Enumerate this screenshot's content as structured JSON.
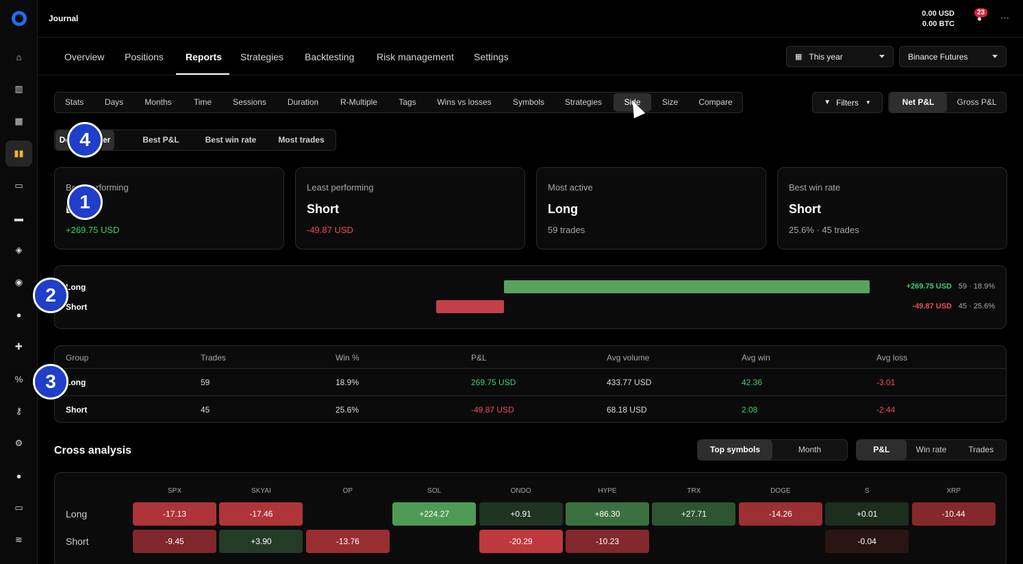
{
  "topbar": {
    "title": "Journal",
    "balance_usd": "0.00 USD",
    "balance_btc": "0.00 BTC",
    "notification_count": "23",
    "more_label": "···"
  },
  "rail": [
    {
      "icon": "home-icon",
      "glyph": "⌂"
    },
    {
      "icon": "chart-icon",
      "glyph": "▥"
    },
    {
      "icon": "grid-icon",
      "glyph": "▦"
    },
    {
      "icon": "book-icon",
      "glyph": "▮▮",
      "active": true
    },
    {
      "icon": "monitor-icon",
      "glyph": "▭"
    },
    {
      "icon": "wallet-icon",
      "glyph": "▬"
    },
    {
      "icon": "tag-icon",
      "glyph": "◈"
    },
    {
      "icon": "compass-icon",
      "glyph": "◉"
    },
    {
      "icon": "chat-icon",
      "glyph": "●",
      "dot": true
    },
    {
      "icon": "puzzle-icon",
      "glyph": "✚"
    },
    {
      "icon": "percent-icon",
      "glyph": "%"
    },
    {
      "icon": "key-icon",
      "glyph": "⚷"
    },
    {
      "icon": "gear-icon",
      "glyph": "⚙"
    },
    {
      "icon": "support-icon",
      "glyph": "●"
    },
    {
      "icon": "desktop-icon",
      "glyph": "▭"
    },
    {
      "icon": "wifi-icon",
      "glyph": "≋"
    }
  ],
  "nav": {
    "tabs": [
      "Overview",
      "Positions",
      "Reports",
      "Strategies",
      "Backtesting",
      "Risk management",
      "Settings"
    ],
    "active": "Reports",
    "period": "This year",
    "exchange": "Binance Futures"
  },
  "subtabs": [
    "Stats",
    "Days",
    "Months",
    "Time",
    "Sessions",
    "Duration",
    "R-Multiple",
    "Tags",
    "Wins vs losses",
    "Symbols",
    "Strategies",
    "Side",
    "Size",
    "Compare"
  ],
  "subtab_active": "Side",
  "filters": {
    "filters_label": "Filters",
    "net_label": "Net P&L",
    "gross_label": "Gross P&L"
  },
  "sort": [
    "Default order",
    "Best P&L",
    "Best win rate",
    "Most trades"
  ],
  "cards": [
    {
      "label": "Best performing",
      "value": "Long",
      "sub": "+269.75 USD",
      "tone": "pos"
    },
    {
      "label": "Least performing",
      "value": "Short",
      "sub": "-49.87 USD",
      "tone": "neg"
    },
    {
      "label": "Most active",
      "value": "Long",
      "sub": "59 trades",
      "tone": ""
    },
    {
      "label": "Best win rate",
      "value": "Short",
      "sub": "25.6% · 45 trades",
      "tone": ""
    }
  ],
  "bars": [
    {
      "label": "Long",
      "pnl": 269.75,
      "pnl_text": "+269.75 USD",
      "meta": "59 · 18.9%"
    },
    {
      "label": "Short",
      "pnl": -49.87,
      "pnl_text": "-49.87 USD",
      "meta": "45 · 25.6%"
    }
  ],
  "table": {
    "headers": [
      "Group",
      "Trades",
      "Win %",
      "P&L",
      "Avg volume",
      "Avg win",
      "Avg loss"
    ],
    "rows": [
      [
        "Long",
        "59",
        "18.9%",
        "269.75 USD",
        "433.77 USD",
        "42.36",
        "-3.01"
      ],
      [
        "Short",
        "45",
        "25.6%",
        "-49.87 USD",
        "68.18 USD",
        "2.08",
        "-2.44"
      ]
    ]
  },
  "cross": {
    "title": "Cross analysis",
    "mode_tabs": [
      "Top symbols",
      "Month"
    ],
    "mode_active": "Top symbols",
    "metric_tabs": [
      "P&L",
      "Win rate",
      "Trades"
    ],
    "metric_active": "P&L",
    "columns": [
      "SPX",
      "SKYAI",
      "OP",
      "SOL",
      "ONDO",
      "HYPE",
      "TRX",
      "DOGE",
      "S",
      "XRP"
    ],
    "rows": [
      {
        "label": "Long",
        "values": [
          -17.13,
          -17.46,
          null,
          224.27,
          0.91,
          86.3,
          27.71,
          -14.26,
          0.01,
          -10.44
        ],
        "texts": [
          "-17.13",
          "-17.46",
          "",
          "+224.27",
          "+0.91",
          "+86.30",
          "+27.71",
          "-14.26",
          "+0.01",
          "-10.44"
        ]
      },
      {
        "label": "Short",
        "values": [
          -9.45,
          3.9,
          -13.76,
          null,
          -20.29,
          -10.23,
          null,
          null,
          -0.04,
          null
        ],
        "texts": [
          "-9.45",
          "+3.90",
          "-13.76",
          "",
          "-20.29",
          "-10.23",
          "",
          "",
          "-0.04",
          ""
        ]
      }
    ]
  },
  "markers": [
    "1",
    "2",
    "3",
    "4"
  ]
}
